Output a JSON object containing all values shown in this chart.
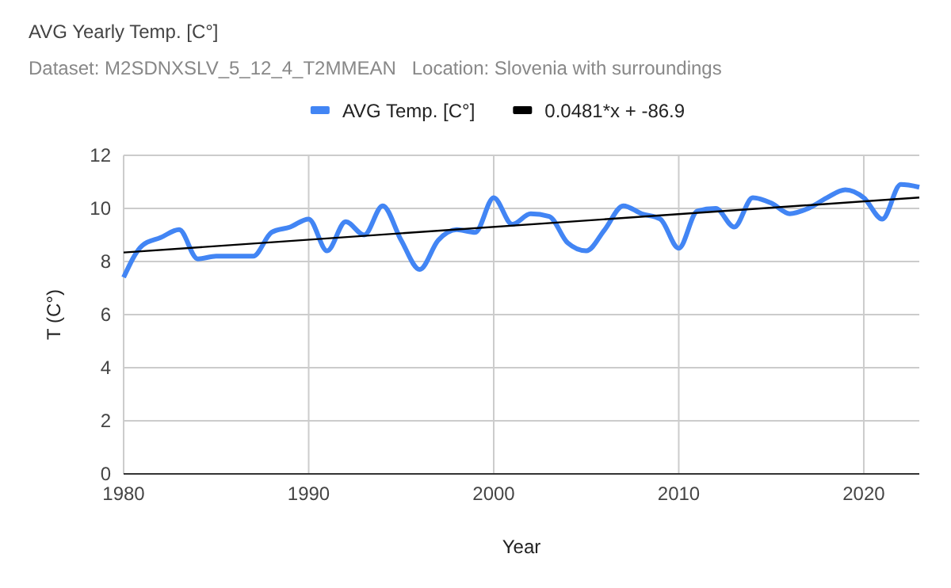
{
  "chart_data": {
    "type": "line",
    "title": "AVG Yearly Temp. [C°]",
    "subtitle": "Dataset: M2SDNXSLV_5_12_4_T2MMEAN   Location: Slovenia with surroundings",
    "xlabel": "Year",
    "ylabel": "T (C°)",
    "x": [
      1980,
      1981,
      1982,
      1983,
      1984,
      1985,
      1986,
      1987,
      1988,
      1989,
      1990,
      1991,
      1992,
      1993,
      1994,
      1995,
      1996,
      1997,
      1998,
      1999,
      2000,
      2001,
      2002,
      2003,
      2004,
      2005,
      2006,
      2007,
      2008,
      2009,
      2010,
      2011,
      2012,
      2013,
      2014,
      2015,
      2016,
      2017,
      2018,
      2019,
      2020,
      2021,
      2022,
      2023
    ],
    "series": [
      {
        "name": "AVG Temp. [C°]",
        "color": "#4285f4",
        "values": [
          7.4,
          8.6,
          8.9,
          9.2,
          8.1,
          8.2,
          8.2,
          8.2,
          9.1,
          9.3,
          9.6,
          8.4,
          9.5,
          9.0,
          10.1,
          8.8,
          7.7,
          8.8,
          9.2,
          9.1,
          10.4,
          9.4,
          9.8,
          9.7,
          8.7,
          8.4,
          9.2,
          10.1,
          9.8,
          9.6,
          8.5,
          9.9,
          10.0,
          9.3,
          10.4,
          10.2,
          9.8,
          10.0,
          10.4,
          10.7,
          10.4,
          9.6,
          10.9,
          10.8
        ]
      },
      {
        "name": "0.0481*x + -86.9",
        "color": "#000000",
        "x": [
          1980,
          2023
        ],
        "values": [
          8.34,
          10.41
        ]
      }
    ],
    "xlim": [
      1980,
      2023
    ],
    "xticks": [
      1980,
      1990,
      2000,
      2010,
      2020
    ],
    "ylim": [
      0,
      12
    ],
    "yticks": [
      0,
      2,
      4,
      6,
      8,
      10,
      12
    ],
    "grid": true,
    "legend": "top",
    "marker": "none"
  }
}
